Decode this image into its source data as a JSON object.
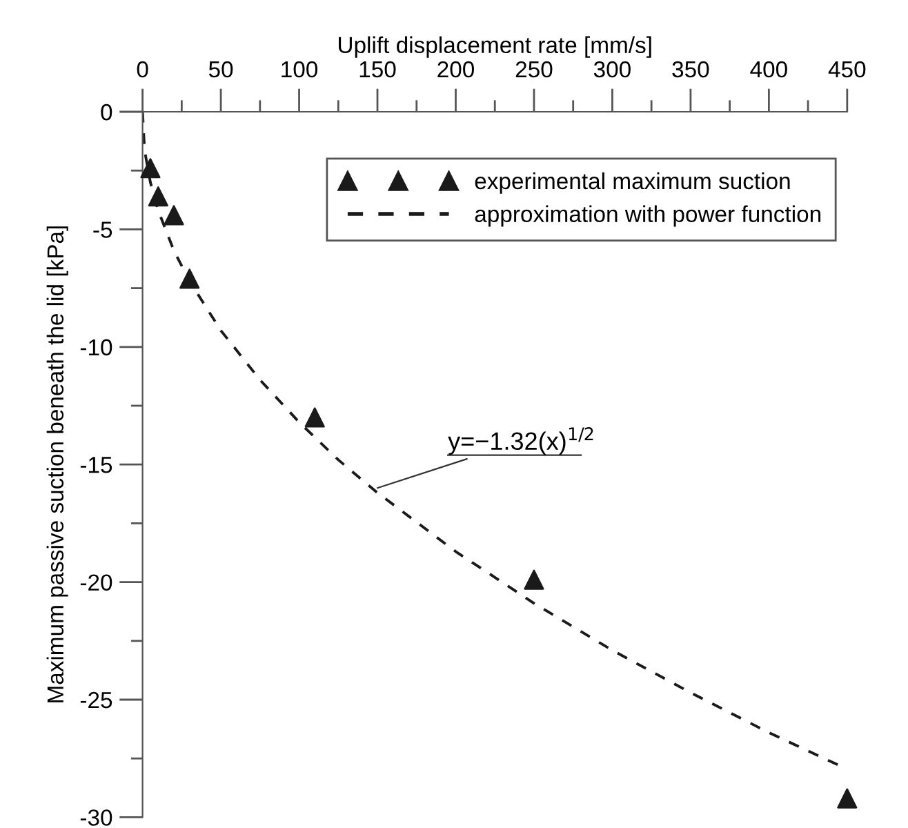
{
  "chart_data": {
    "type": "scatter",
    "xlabel": "Uplift displacement rate [mm/s]",
    "ylabel": "Maximum passive suction beneath the lid [kPa]",
    "xlim": [
      0,
      450
    ],
    "ylim": [
      -30,
      0
    ],
    "xticks": [
      0,
      {
        "value": 25,
        "label": null
      },
      50,
      {
        "value": 75,
        "label": null
      },
      100,
      {
        "value": 125,
        "label": null
      },
      150,
      {
        "value": 175,
        "label": null
      },
      200,
      {
        "value": 225,
        "label": null
      },
      250,
      {
        "value": 275,
        "label": null
      },
      300,
      {
        "value": 325,
        "label": null
      },
      350,
      {
        "value": 375,
        "label": null
      },
      400,
      {
        "value": 425,
        "label": null
      },
      450
    ],
    "yticks": [
      0,
      {
        "value": -2.5,
        "label": null
      },
      {
        "value": -5,
        "label": "-5"
      },
      {
        "value": -7.5,
        "label": null
      },
      {
        "value": -10,
        "label": "-10"
      },
      {
        "value": -12.5,
        "label": null
      },
      {
        "value": -15,
        "label": "-15"
      },
      {
        "value": -17.5,
        "label": null
      },
      {
        "value": -20,
        "label": "-20"
      },
      {
        "value": -22.5,
        "label": null
      },
      {
        "value": -25,
        "label": "-25"
      },
      {
        "value": -27.5,
        "label": null
      },
      {
        "value": -30,
        "label": "-30"
      }
    ],
    "grid": false,
    "legend": "top right",
    "series": [
      {
        "name": "experimental maximum suction",
        "marker": "triangle",
        "color": "#1a1a1a",
        "x": [
          5,
          10,
          20,
          30,
          110,
          250,
          450
        ],
        "values": [
          -2.4,
          -3.6,
          -4.4,
          -7.1,
          -13.0,
          -19.9,
          -29.2
        ]
      },
      {
        "name": "approximation with power function",
        "type": "line",
        "line_style": "dashed",
        "marker": "none",
        "color": "#1a1a1a",
        "x": [
          0,
          1,
          2,
          5,
          10,
          20,
          30,
          50,
          75,
          100,
          125,
          150,
          200,
          250,
          300,
          350,
          400,
          445
        ],
        "values": [
          0,
          -1.3,
          -1.9,
          -3.0,
          -4.2,
          -5.9,
          -7.2,
          -9.3,
          -11.4,
          -13.2,
          -14.8,
          -16.2,
          -18.7,
          -20.9,
          -22.9,
          -24.7,
          -26.4,
          -27.8
        ]
      }
    ],
    "annotations": [
      {
        "text": "y=−1.32(x)$^{1/2}$",
        "x": 150,
        "y": -16.0
      }
    ]
  }
}
